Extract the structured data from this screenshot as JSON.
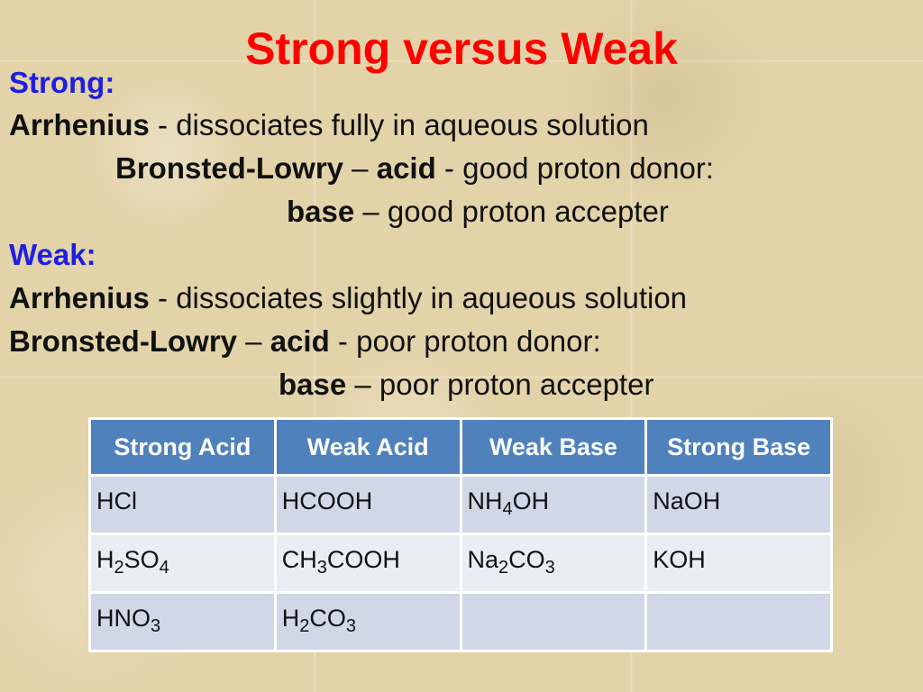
{
  "title": "Strong versus Weak",
  "strong": {
    "heading": "Strong:",
    "arrhenius_term": "Arrhenius",
    "arrhenius_text": " - dissociates fully in aqueous solution",
    "bl_term": "Bronsted-Lowry",
    "dash1": " – ",
    "acid_term": "acid",
    "acid_text": " - good proton donor:",
    "base_term": "base",
    "dash2": " – ",
    "base_text": "good proton accepter"
  },
  "weak": {
    "heading": "Weak:",
    "arrhenius_term": "Arrhenius",
    "arrhenius_text": " - dissociates slightly in aqueous solution",
    "bl_term": "Bronsted-Lowry",
    "dash1": " – ",
    "acid_term": "acid",
    "acid_text": " - poor proton donor:",
    "base_term": "base",
    "dash2": " – ",
    "base_text": "poor proton accepter"
  },
  "table": {
    "headers": [
      "Strong Acid",
      "Weak Acid",
      "Weak Base",
      "Strong Base"
    ],
    "rows": [
      [
        {
          "parts": [
            {
              "t": "HCl"
            }
          ]
        },
        {
          "parts": [
            {
              "t": "HCOOH"
            }
          ]
        },
        {
          "parts": [
            {
              "t": "NH"
            },
            {
              "t": "4",
              "sub": true
            },
            {
              "t": "OH"
            }
          ]
        },
        {
          "parts": [
            {
              "t": "NaOH"
            }
          ]
        }
      ],
      [
        {
          "parts": [
            {
              "t": "H"
            },
            {
              "t": "2",
              "sub": true
            },
            {
              "t": "SO"
            },
            {
              "t": "4",
              "sub": true
            }
          ]
        },
        {
          "parts": [
            {
              "t": "CH"
            },
            {
              "t": "3",
              "sub": true
            },
            {
              "t": "COOH"
            }
          ]
        },
        {
          "parts": [
            {
              "t": "Na"
            },
            {
              "t": "2",
              "sub": true
            },
            {
              "t": "CO"
            },
            {
              "t": "3",
              "sub": true
            }
          ]
        },
        {
          "parts": [
            {
              "t": "KOH"
            }
          ]
        }
      ],
      [
        {
          "parts": [
            {
              "t": "HNO"
            },
            {
              "t": "3",
              "sub": true
            }
          ]
        },
        {
          "parts": [
            {
              "t": "H"
            },
            {
              "t": "2",
              "sub": true
            },
            {
              "t": "CO"
            },
            {
              "t": "3",
              "sub": true
            }
          ]
        },
        {
          "parts": []
        },
        {
          "parts": []
        }
      ]
    ]
  },
  "colors": {
    "title": "#ff0000",
    "heading": "#1f1fe0",
    "table_header": "#4f81bd",
    "row_dark": "#d0d8e8",
    "row_light": "#e9edf4"
  }
}
